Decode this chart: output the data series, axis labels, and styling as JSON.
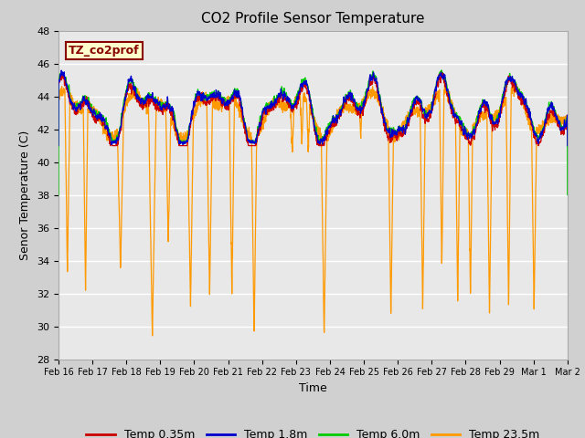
{
  "title": "CO2 Profile Sensor Temperature",
  "xlabel": "Time",
  "ylabel": "Senor Temperature (C)",
  "ylim": [
    28,
    48
  ],
  "yticks": [
    28,
    30,
    32,
    34,
    36,
    38,
    40,
    42,
    44,
    46,
    48
  ],
  "xtick_labels": [
    "Feb 16",
    "Feb 17",
    "Feb 18",
    "Feb 19",
    "Feb 20",
    "Feb 21",
    "Feb 22",
    "Feb 23",
    "Feb 24",
    "Feb 25",
    "Feb 26",
    "Feb 27",
    "Feb 28",
    "Feb 29",
    "Mar 1",
    "Mar 2"
  ],
  "legend_labels": [
    "Temp 0.35m",
    "Temp 1.8m",
    "Temp 6.0m",
    "Temp 23.5m"
  ],
  "legend_colors": [
    "#cc0000",
    "#0000cc",
    "#00cc00",
    "#ff9900"
  ],
  "annotation_text": "TZ_co2prof",
  "annotation_bg": "#ffffcc",
  "annotation_border": "#880000",
  "plot_bg_color": "#e8e8e8",
  "grid_color": "#ffffff",
  "title_fontsize": 11,
  "axis_fontsize": 9,
  "tick_fontsize": 8,
  "legend_fontsize": 9
}
